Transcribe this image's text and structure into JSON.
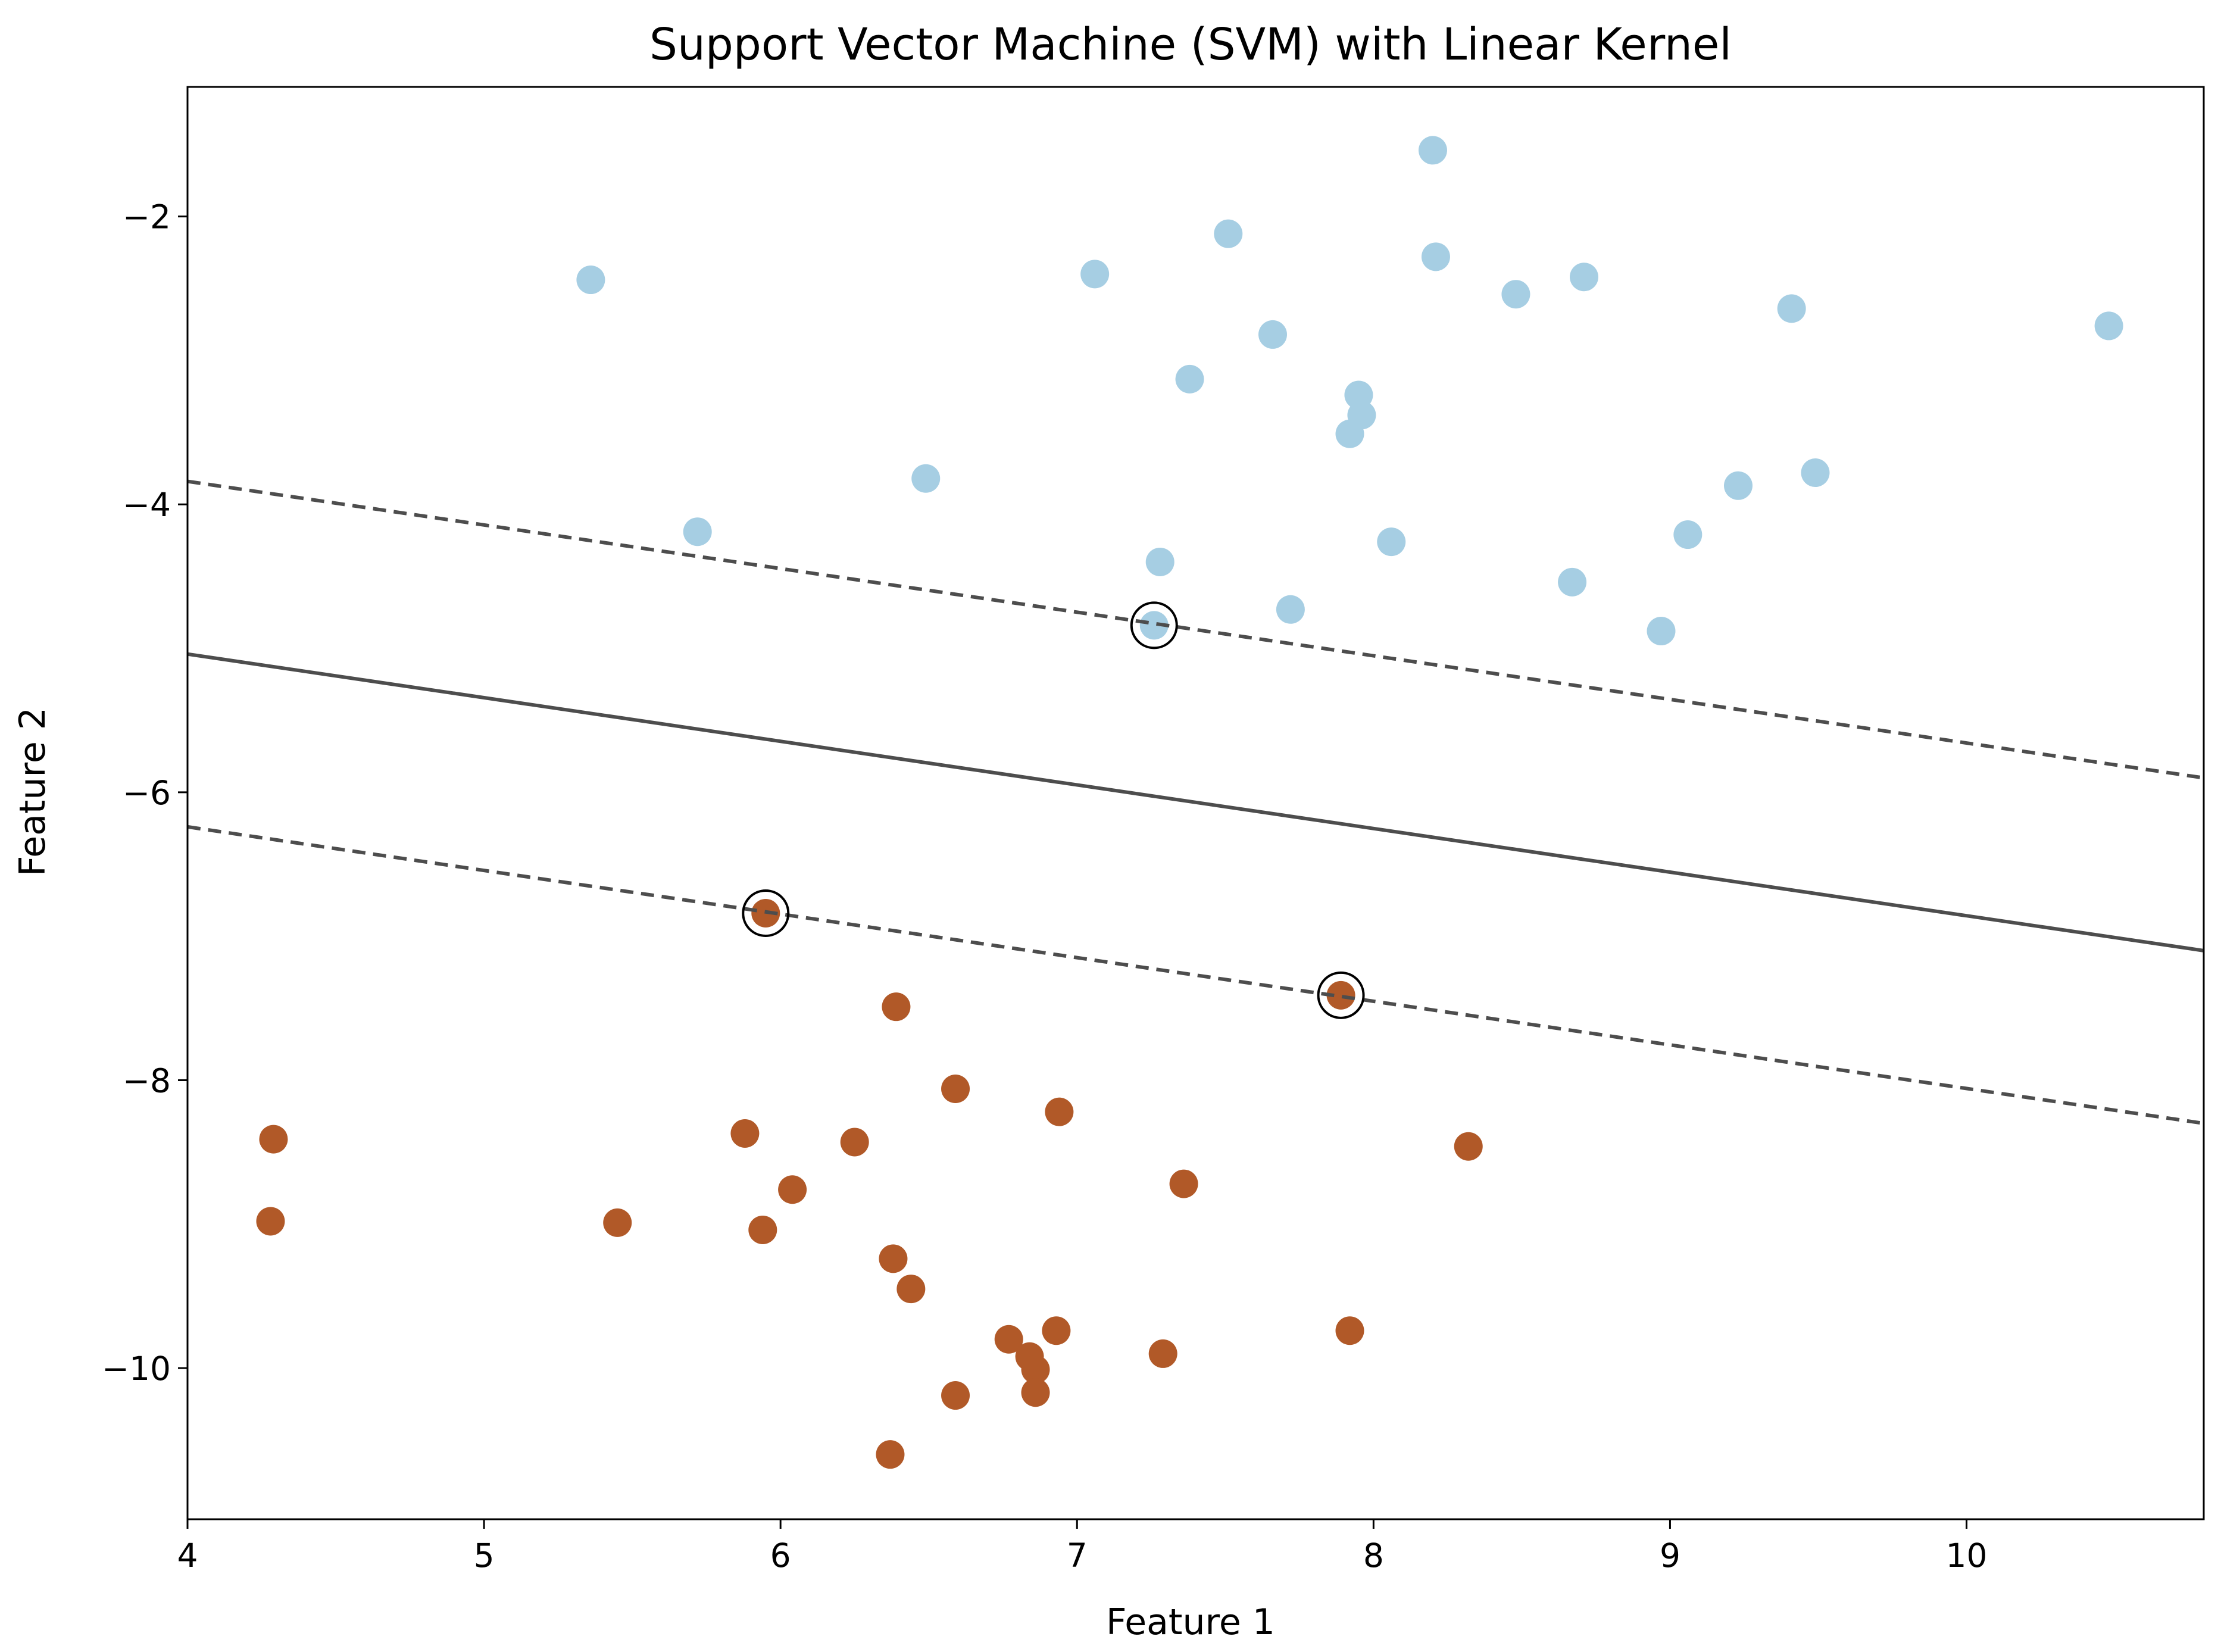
{
  "chart_data": {
    "type": "scatter",
    "title": "Support Vector Machine (SVM) with Linear Kernel",
    "xlabel": "Feature 1",
    "ylabel": "Feature 2",
    "xlim": [
      4.0,
      10.8
    ],
    "ylim": [
      -11.05,
      -1.1
    ],
    "xticks": [
      {
        "value": 4,
        "label": "4"
      },
      {
        "value": 5,
        "label": "5"
      },
      {
        "value": 6,
        "label": "6"
      },
      {
        "value": 7,
        "label": "7"
      },
      {
        "value": 8,
        "label": "8"
      },
      {
        "value": 9,
        "label": "9"
      },
      {
        "value": 10,
        "label": "10"
      }
    ],
    "yticks": [
      {
        "value": -2,
        "label": "−2"
      },
      {
        "value": -4,
        "label": "−4"
      },
      {
        "value": -6,
        "label": "−6"
      },
      {
        "value": -8,
        "label": "−8"
      },
      {
        "value": -10,
        "label": "−10"
      }
    ],
    "grid": false,
    "legend": "none",
    "colors": {
      "class_a": "#a6cee3",
      "class_b": "#b15928",
      "boundary": "#4d4d4d",
      "margin": "#4d4d4d",
      "support_vector_ring": "#000000"
    },
    "series": [
      {
        "class": "a",
        "points": [
          [
            5.36,
            -2.44
          ],
          [
            7.06,
            -2.4
          ],
          [
            7.51,
            -2.12
          ],
          [
            8.2,
            -1.54
          ],
          [
            8.21,
            -2.28
          ],
          [
            8.48,
            -2.54
          ],
          [
            8.71,
            -2.42
          ],
          [
            9.41,
            -2.64
          ],
          [
            10.48,
            -2.76
          ],
          [
            7.66,
            -2.82
          ],
          [
            7.38,
            -3.13
          ],
          [
            7.95,
            -3.24
          ],
          [
            7.96,
            -3.38
          ],
          [
            7.92,
            -3.51
          ],
          [
            6.49,
            -3.82
          ],
          [
            5.72,
            -4.19
          ],
          [
            7.28,
            -4.4
          ],
          [
            8.06,
            -4.26
          ],
          [
            9.23,
            -3.87
          ],
          [
            9.49,
            -3.78
          ],
          [
            9.06,
            -4.21
          ],
          [
            8.67,
            -4.54
          ],
          [
            7.72,
            -4.73
          ],
          [
            8.97,
            -4.88
          ],
          [
            7.26,
            -4.84
          ]
        ]
      },
      {
        "class": "b",
        "points": [
          [
            5.95,
            -6.84
          ],
          [
            7.89,
            -7.41
          ],
          [
            6.39,
            -7.49
          ],
          [
            6.59,
            -8.06
          ],
          [
            6.94,
            -8.22
          ],
          [
            4.29,
            -8.41
          ],
          [
            5.88,
            -8.37
          ],
          [
            6.25,
            -8.43
          ],
          [
            8.32,
            -8.46
          ],
          [
            6.04,
            -8.76
          ],
          [
            7.36,
            -8.72
          ],
          [
            4.28,
            -8.98
          ],
          [
            5.45,
            -8.99
          ],
          [
            5.94,
            -9.04
          ],
          [
            6.38,
            -9.24
          ],
          [
            6.44,
            -9.45
          ],
          [
            6.77,
            -9.8
          ],
          [
            6.93,
            -9.74
          ],
          [
            7.92,
            -9.74
          ],
          [
            6.84,
            -9.92
          ],
          [
            7.29,
            -9.9
          ],
          [
            6.86,
            -10.01
          ],
          [
            6.59,
            -10.19
          ],
          [
            6.86,
            -10.17
          ],
          [
            6.37,
            -10.6
          ]
        ]
      }
    ],
    "support_vectors": [
      [
        7.26,
        -4.84
      ],
      [
        5.95,
        -6.84
      ],
      [
        7.89,
        -7.41
      ]
    ],
    "decision_boundary": [
      [
        4.0,
        -5.04
      ],
      [
        10.8,
        -7.1
      ]
    ],
    "margins": [
      [
        [
          4.0,
          -3.84
        ],
        [
          10.8,
          -5.9
        ]
      ],
      [
        [
          4.0,
          -6.24
        ],
        [
          10.8,
          -8.3
        ]
      ]
    ]
  }
}
